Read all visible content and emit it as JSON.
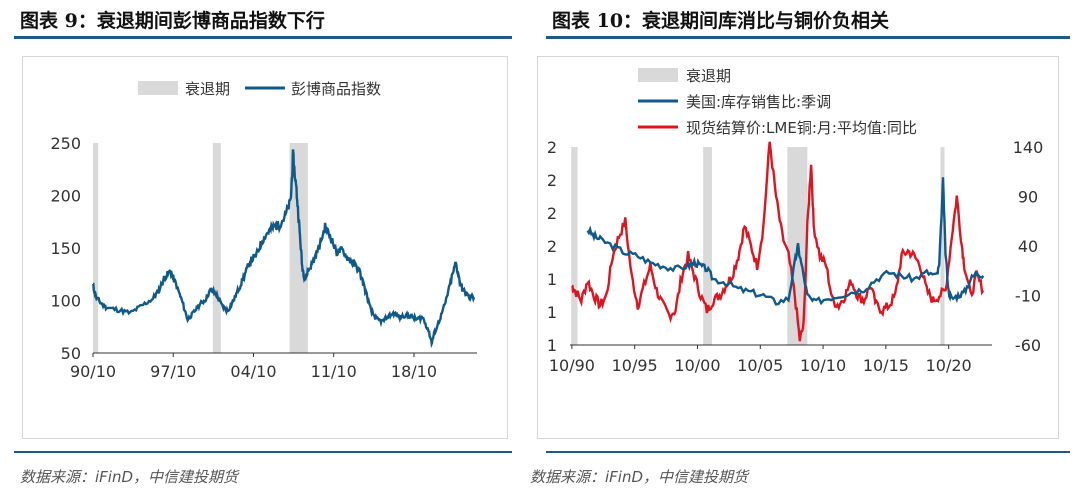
{
  "left": {
    "fig_title": "图表 9：衰退期间彭博商品指数下行",
    "source": "数据来源：iFinD，中信建投期货"
  },
  "right": {
    "fig_title": "图表 10：衰退期间库消比与铜价负相关",
    "source": "数据来源：iFinD，中信建投期货"
  },
  "colors": {
    "navy": "#0f5a8a",
    "red": "#e0141e",
    "recession": "#d9d9d9",
    "rule": "#1d5b86"
  },
  "chart_data": [
    {
      "type": "line",
      "legend": [
        "衰退期",
        "彭博商品指数"
      ],
      "series": [
        {
          "name": "彭博商品指数",
          "x": [
            1990.75,
            1991.0,
            1991.5,
            1992.0,
            1993.0,
            1994.0,
            1995.0,
            1996.0,
            1996.5,
            1997.0,
            1997.5,
            1998.0,
            1998.5,
            1999.0,
            1999.5,
            2000.0,
            2000.5,
            2001.0,
            2001.5,
            2002.0,
            2002.5,
            2003.0,
            2003.5,
            2004.0,
            2004.5,
            2005.0,
            2005.5,
            2006.0,
            2006.5,
            2007.0,
            2007.5,
            2008.0,
            2008.2,
            2008.5,
            2008.75,
            2009.0,
            2009.25,
            2009.5,
            2010.0,
            2010.5,
            2011.0,
            2011.5,
            2012.0,
            2012.5,
            2013.0,
            2013.5,
            2014.0,
            2014.5,
            2015.0,
            2015.5,
            2016.0,
            2016.5,
            2017.0,
            2017.5,
            2018.0,
            2018.5,
            2019.0,
            2019.5,
            2020.0,
            2020.3,
            2020.5,
            2021.0,
            2021.5,
            2022.0,
            2022.4,
            2022.7,
            2023.0,
            2023.5,
            2024.0
          ],
          "values": [
            115,
            103,
            97,
            93,
            91,
            88,
            95,
            102,
            110,
            122,
            128,
            115,
            100,
            82,
            88,
            96,
            100,
            110,
            106,
            95,
            90,
            100,
            112,
            125,
            138,
            143,
            157,
            165,
            170,
            172,
            180,
            195,
            238,
            205,
            170,
            132,
            120,
            128,
            138,
            152,
            170,
            160,
            146,
            148,
            140,
            135,
            128,
            110,
            90,
            82,
            80,
            85,
            88,
            84,
            86,
            85,
            82,
            84,
            72,
            60,
            68,
            82,
            98,
            120,
            136,
            120,
            110,
            104,
            103
          ]
        }
      ],
      "xlabels": [
        "90/10",
        "97/10",
        "04/10",
        "11/10",
        "18/10"
      ],
      "ylim": [
        50,
        250
      ],
      "yticks": [
        50,
        100,
        150,
        200,
        250
      ],
      "xlim": [
        1990.75,
        2024.25
      ],
      "recessions": [
        [
          1990.7,
          1991.2
        ],
        [
          2001.2,
          2001.9
        ],
        [
          2007.9,
          2009.5
        ]
      ]
    },
    {
      "type": "line",
      "legend": [
        "衰退期",
        "美国:库存销售比:季调",
        "现货结算价:LME铜:月:平均值:同比"
      ],
      "series": [
        {
          "name": "美国:库存销售比:季调",
          "axis": "left",
          "x": [
            1992.0,
            1992.5,
            1993.0,
            1994.0,
            1995.0,
            1996.0,
            1997.0,
            1998.0,
            1999.0,
            2000.0,
            2000.5,
            2001.0,
            2001.5,
            2002.0,
            2003.0,
            2004.0,
            2005.0,
            2006.0,
            2007.0,
            2008.0,
            2008.5,
            2008.75,
            2009.0,
            2009.5,
            2010.0,
            2011.0,
            2012.0,
            2013.0,
            2014.0,
            2015.0,
            2016.0,
            2017.0,
            2018.0,
            2019.0,
            2019.8,
            2020.0,
            2020.3,
            2020.5,
            2020.75,
            2021.0,
            2021.5,
            2022.0,
            2022.5,
            2023.0,
            2023.5
          ],
          "values": [
            1.57,
            1.55,
            1.54,
            1.52,
            1.5,
            1.49,
            1.47,
            1.46,
            1.45,
            1.46,
            1.47,
            1.46,
            1.45,
            1.42,
            1.41,
            1.39,
            1.38,
            1.37,
            1.35,
            1.36,
            1.47,
            1.52,
            1.47,
            1.37,
            1.35,
            1.36,
            1.37,
            1.38,
            1.39,
            1.42,
            1.44,
            1.43,
            1.42,
            1.44,
            1.43,
            1.46,
            1.72,
            1.5,
            1.38,
            1.36,
            1.37,
            1.38,
            1.42,
            1.44,
            1.43
          ]
        },
        {
          "name": "现货结算价:LME铜:月:平均值:同比",
          "axis": "right",
          "x": [
            1990.75,
            1991.0,
            1991.5,
            1992.0,
            1992.5,
            1993.0,
            1993.5,
            1994.0,
            1994.5,
            1995.0,
            1995.5,
            1996.0,
            1996.5,
            1997.0,
            1997.5,
            1998.0,
            1998.5,
            1999.0,
            1999.5,
            2000.0,
            2000.5,
            2001.0,
            2001.5,
            2002.0,
            2002.5,
            2003.0,
            2003.5,
            2004.0,
            2004.5,
            2005.0,
            2005.5,
            2006.0,
            2006.5,
            2007.0,
            2007.5,
            2008.0,
            2008.5,
            2008.9,
            2009.2,
            2009.5,
            2009.8,
            2010.0,
            2010.5,
            2011.0,
            2011.5,
            2012.0,
            2012.5,
            2013.0,
            2013.5,
            2014.0,
            2014.5,
            2015.0,
            2015.5,
            2016.0,
            2016.5,
            2017.0,
            2017.5,
            2018.0,
            2018.5,
            2019.0,
            2019.5,
            2020.0,
            2020.5,
            2021.0,
            2021.4,
            2021.8,
            2022.0,
            2022.5,
            2023.0,
            2023.5
          ],
          "values": [
            0,
            -5,
            -15,
            5,
            -10,
            -20,
            -10,
            30,
            50,
            65,
            10,
            -20,
            0,
            20,
            -5,
            -20,
            -30,
            -25,
            10,
            30,
            10,
            -10,
            -25,
            -15,
            -10,
            0,
            10,
            30,
            60,
            40,
            20,
            60,
            145,
            90,
            50,
            30,
            -10,
            -55,
            -40,
            60,
            125,
            60,
            30,
            20,
            -15,
            -20,
            -10,
            5,
            -10,
            -15,
            0,
            -20,
            -25,
            -20,
            -10,
            30,
            35,
            30,
            20,
            -5,
            -15,
            -10,
            -5,
            50,
            90,
            40,
            20,
            -10,
            10,
            -5
          ]
        }
      ],
      "xlabels": [
        "10/90",
        "10/95",
        "10/00",
        "10/05",
        "10/10",
        "10/15",
        "10/20"
      ],
      "xlim": [
        1990.6,
        2024.2
      ],
      "left_ylim": [
        1.22,
        1.82
      ],
      "left_ticks": [
        "1",
        "1",
        "1",
        "2",
        "2",
        "2",
        "2"
      ],
      "right_ylim": [
        -60,
        140
      ],
      "right_ticks": [
        "-60",
        "-10",
        "40",
        "90",
        "140"
      ],
      "recessions": [
        [
          1990.7,
          1991.2
        ],
        [
          2001.2,
          2001.9
        ],
        [
          2007.9,
          2009.5
        ],
        [
          2020.1,
          2020.4
        ]
      ]
    }
  ]
}
